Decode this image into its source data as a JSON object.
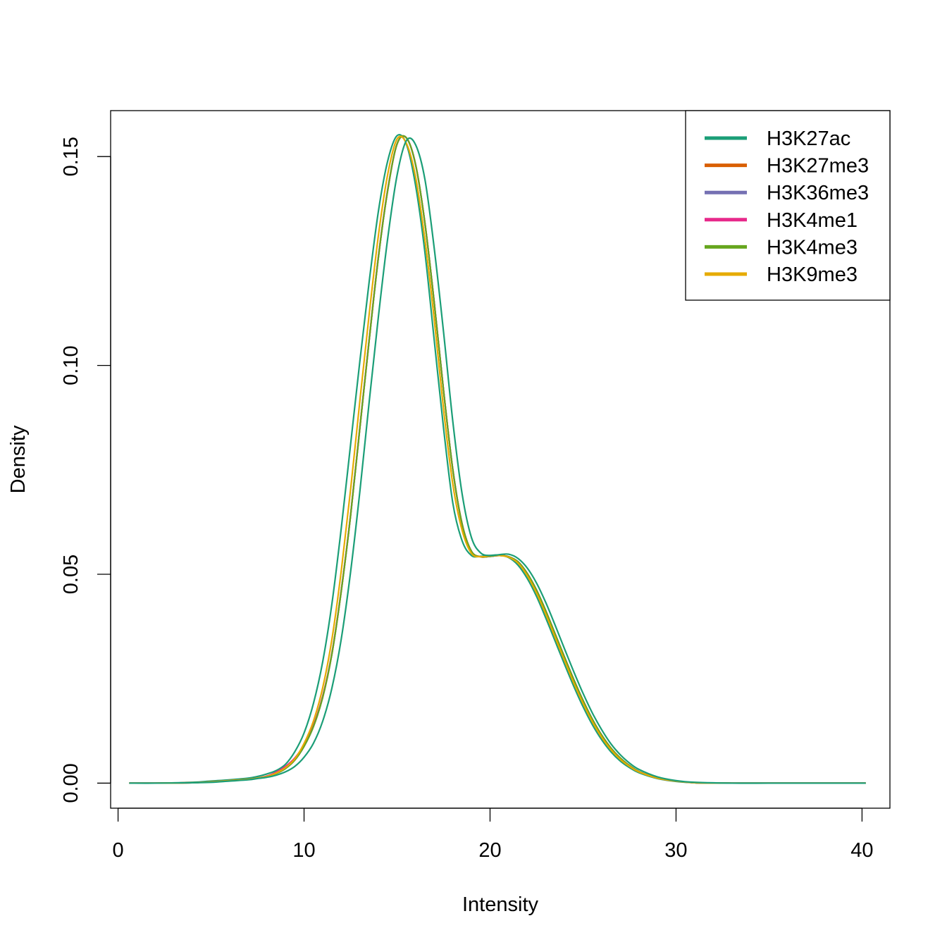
{
  "chart_data": {
    "type": "line",
    "title": "",
    "xlabel": "Intensity",
    "ylabel": "Density",
    "xlim": [
      -0.4,
      41.5
    ],
    "ylim": [
      -0.006,
      0.161
    ],
    "xticks": [
      0,
      10,
      20,
      30,
      40
    ],
    "xtick_labels": [
      "0",
      "10",
      "20",
      "30",
      "40"
    ],
    "yticks": [
      0.0,
      0.05,
      0.1,
      0.15
    ],
    "ytick_labels": [
      "0.00",
      "0.05",
      "0.10",
      "0.15"
    ],
    "grid": false,
    "legend_position": "top-right",
    "x": [
      0.6,
      2,
      4,
      5,
      6,
      7,
      7.5,
      8,
      8.5,
      9,
      9.5,
      10,
      10.5,
      11,
      11.5,
      12,
      12.5,
      13,
      13.5,
      14,
      14.5,
      15,
      15.5,
      16,
      16.5,
      17,
      17.5,
      18,
      18.5,
      19,
      19.5,
      20,
      20.5,
      21,
      21.5,
      22,
      22.5,
      23,
      23.5,
      24,
      24.5,
      25,
      25.5,
      26,
      26.5,
      27,
      27.5,
      28,
      29,
      30,
      31,
      33,
      35,
      37,
      40.2
    ],
    "series": [
      {
        "name": "H3K27ac",
        "color": "#1B9E77",
        "values": [
          0.0,
          0.0,
          0.0002,
          0.0005,
          0.0008,
          0.0012,
          0.0016,
          0.0022,
          0.003,
          0.0045,
          0.0075,
          0.012,
          0.019,
          0.029,
          0.043,
          0.061,
          0.081,
          0.101,
          0.12,
          0.137,
          0.149,
          0.155,
          0.153,
          0.143,
          0.127,
          0.106,
          0.085,
          0.067,
          0.058,
          0.0545,
          0.0543,
          0.0545,
          0.0546,
          0.054,
          0.0522,
          0.049,
          0.0447,
          0.0395,
          0.034,
          0.0285,
          0.0232,
          0.0183,
          0.014,
          0.0104,
          0.0075,
          0.0053,
          0.0037,
          0.0025,
          0.0011,
          0.0004,
          0.0001,
          0.0,
          0.0,
          0.0,
          0.0
        ]
      },
      {
        "name": "H3K27me3",
        "color": "#D95F02",
        "values": [
          0.0,
          0.0,
          0.0001,
          0.0003,
          0.0006,
          0.0009,
          0.0012,
          0.0016,
          0.0023,
          0.0035,
          0.0055,
          0.0088,
          0.0135,
          0.0205,
          0.031,
          0.046,
          0.064,
          0.085,
          0.106,
          0.126,
          0.142,
          0.153,
          0.1545,
          0.148,
          0.134,
          0.115,
          0.094,
          0.075,
          0.062,
          0.0555,
          0.0542,
          0.0543,
          0.0545,
          0.0542,
          0.053,
          0.0502,
          0.0462,
          0.0412,
          0.0357,
          0.0302,
          0.0248,
          0.0198,
          0.0153,
          0.0115,
          0.0084,
          0.006,
          0.0042,
          0.0028,
          0.0012,
          0.0005,
          0.0001,
          0.0,
          0.0,
          0.0,
          0.0
        ]
      },
      {
        "name": "H3K36me3",
        "color": "#7570B3",
        "values": [
          0.0,
          0.0,
          0.0001,
          0.0003,
          0.0006,
          0.0009,
          0.0012,
          0.0016,
          0.0023,
          0.0035,
          0.0055,
          0.0088,
          0.0135,
          0.0205,
          0.031,
          0.046,
          0.064,
          0.085,
          0.106,
          0.126,
          0.142,
          0.153,
          0.1545,
          0.148,
          0.134,
          0.115,
          0.094,
          0.075,
          0.062,
          0.0555,
          0.0542,
          0.0543,
          0.0545,
          0.0542,
          0.053,
          0.0502,
          0.0462,
          0.0412,
          0.0357,
          0.0302,
          0.0248,
          0.0198,
          0.0153,
          0.0115,
          0.0084,
          0.006,
          0.0042,
          0.0028,
          0.0012,
          0.0005,
          0.0001,
          0.0,
          0.0,
          0.0,
          0.0
        ]
      },
      {
        "name": "H3K4me1",
        "color": "#E7298A",
        "values": [
          0.0,
          0.0,
          0.0001,
          0.0003,
          0.0006,
          0.0009,
          0.0012,
          0.0017,
          0.0026,
          0.004,
          0.006,
          0.0092,
          0.0138,
          0.0208,
          0.0312,
          0.0462,
          0.0642,
          0.0852,
          0.1062,
          0.1262,
          0.1422,
          0.153,
          0.1545,
          0.148,
          0.134,
          0.115,
          0.094,
          0.075,
          0.062,
          0.0555,
          0.0542,
          0.0543,
          0.0545,
          0.0542,
          0.053,
          0.0502,
          0.0462,
          0.0412,
          0.0357,
          0.0302,
          0.0248,
          0.0198,
          0.0153,
          0.0115,
          0.0084,
          0.006,
          0.0042,
          0.0028,
          0.0012,
          0.0005,
          0.0001,
          0.0,
          0.0,
          0.0,
          0.0
        ]
      },
      {
        "name": "H3K4me3",
        "color": "#66A61E",
        "values": [
          0.0,
          0.0,
          0.0001,
          0.0003,
          0.0006,
          0.0009,
          0.0012,
          0.0016,
          0.0023,
          0.0035,
          0.0055,
          0.0088,
          0.0135,
          0.0205,
          0.031,
          0.046,
          0.064,
          0.085,
          0.106,
          0.126,
          0.142,
          0.153,
          0.1545,
          0.148,
          0.134,
          0.115,
          0.094,
          0.075,
          0.062,
          0.0555,
          0.0542,
          0.0543,
          0.0545,
          0.0542,
          0.053,
          0.0502,
          0.0462,
          0.0412,
          0.0357,
          0.0302,
          0.0248,
          0.0198,
          0.0153,
          0.0115,
          0.0084,
          0.006,
          0.0042,
          0.0028,
          0.0012,
          0.0005,
          0.0001,
          0.0,
          0.0,
          0.0,
          0.0
        ]
      },
      {
        "name": "H3K9me3",
        "color": "#E6AB02",
        "values": [
          0.0,
          0.0,
          0.0001,
          0.0003,
          0.0006,
          0.0009,
          0.0012,
          0.0016,
          0.0024,
          0.0037,
          0.0058,
          0.0095,
          0.0148,
          0.0228,
          0.0345,
          0.0508,
          0.0702,
          0.0915,
          0.1122,
          0.1312,
          0.1458,
          0.1542,
          0.1532,
          0.145,
          0.13,
          0.111,
          0.0895,
          0.0715,
          0.0605,
          0.055,
          0.0542,
          0.0544,
          0.0545,
          0.0541,
          0.0527,
          0.0497,
          0.0455,
          0.0404,
          0.0349,
          0.0294,
          0.024,
          0.0191,
          0.0147,
          0.011,
          0.008,
          0.0057,
          0.004,
          0.0027,
          0.0012,
          0.0005,
          0.0001,
          0.0,
          0.0,
          0.0,
          0.0
        ]
      },
      {
        "name": "",
        "color": "#1B9E77",
        "values": [
          0.0,
          0.0,
          0.0001,
          0.0002,
          0.0005,
          0.0008,
          0.0011,
          0.0014,
          0.0019,
          0.0027,
          0.004,
          0.0062,
          0.0095,
          0.0148,
          0.0228,
          0.0345,
          0.0505,
          0.0698,
          0.0912,
          0.1118,
          0.1305,
          0.1455,
          0.1538,
          0.1528,
          0.1445,
          0.128,
          0.108,
          0.0865,
          0.0692,
          0.0588,
          0.0551,
          0.0545,
          0.0547,
          0.0548,
          0.0538,
          0.0515,
          0.0479,
          0.0432,
          0.0378,
          0.0322,
          0.0267,
          0.0215,
          0.0168,
          0.0128,
          0.0094,
          0.0068,
          0.0048,
          0.0033,
          0.0015,
          0.0006,
          0.0002,
          0.0,
          0.0,
          0.0,
          0.0
        ]
      }
    ],
    "legend": [
      {
        "label": "H3K27ac",
        "color": "#1B9E77"
      },
      {
        "label": "H3K27me3",
        "color": "#D95F02"
      },
      {
        "label": "H3K36me3",
        "color": "#7570B3"
      },
      {
        "label": "H3K4me1",
        "color": "#E7298A"
      },
      {
        "label": "H3K4me3",
        "color": "#66A61E"
      },
      {
        "label": "H3K9me3",
        "color": "#E6AB02"
      }
    ]
  }
}
